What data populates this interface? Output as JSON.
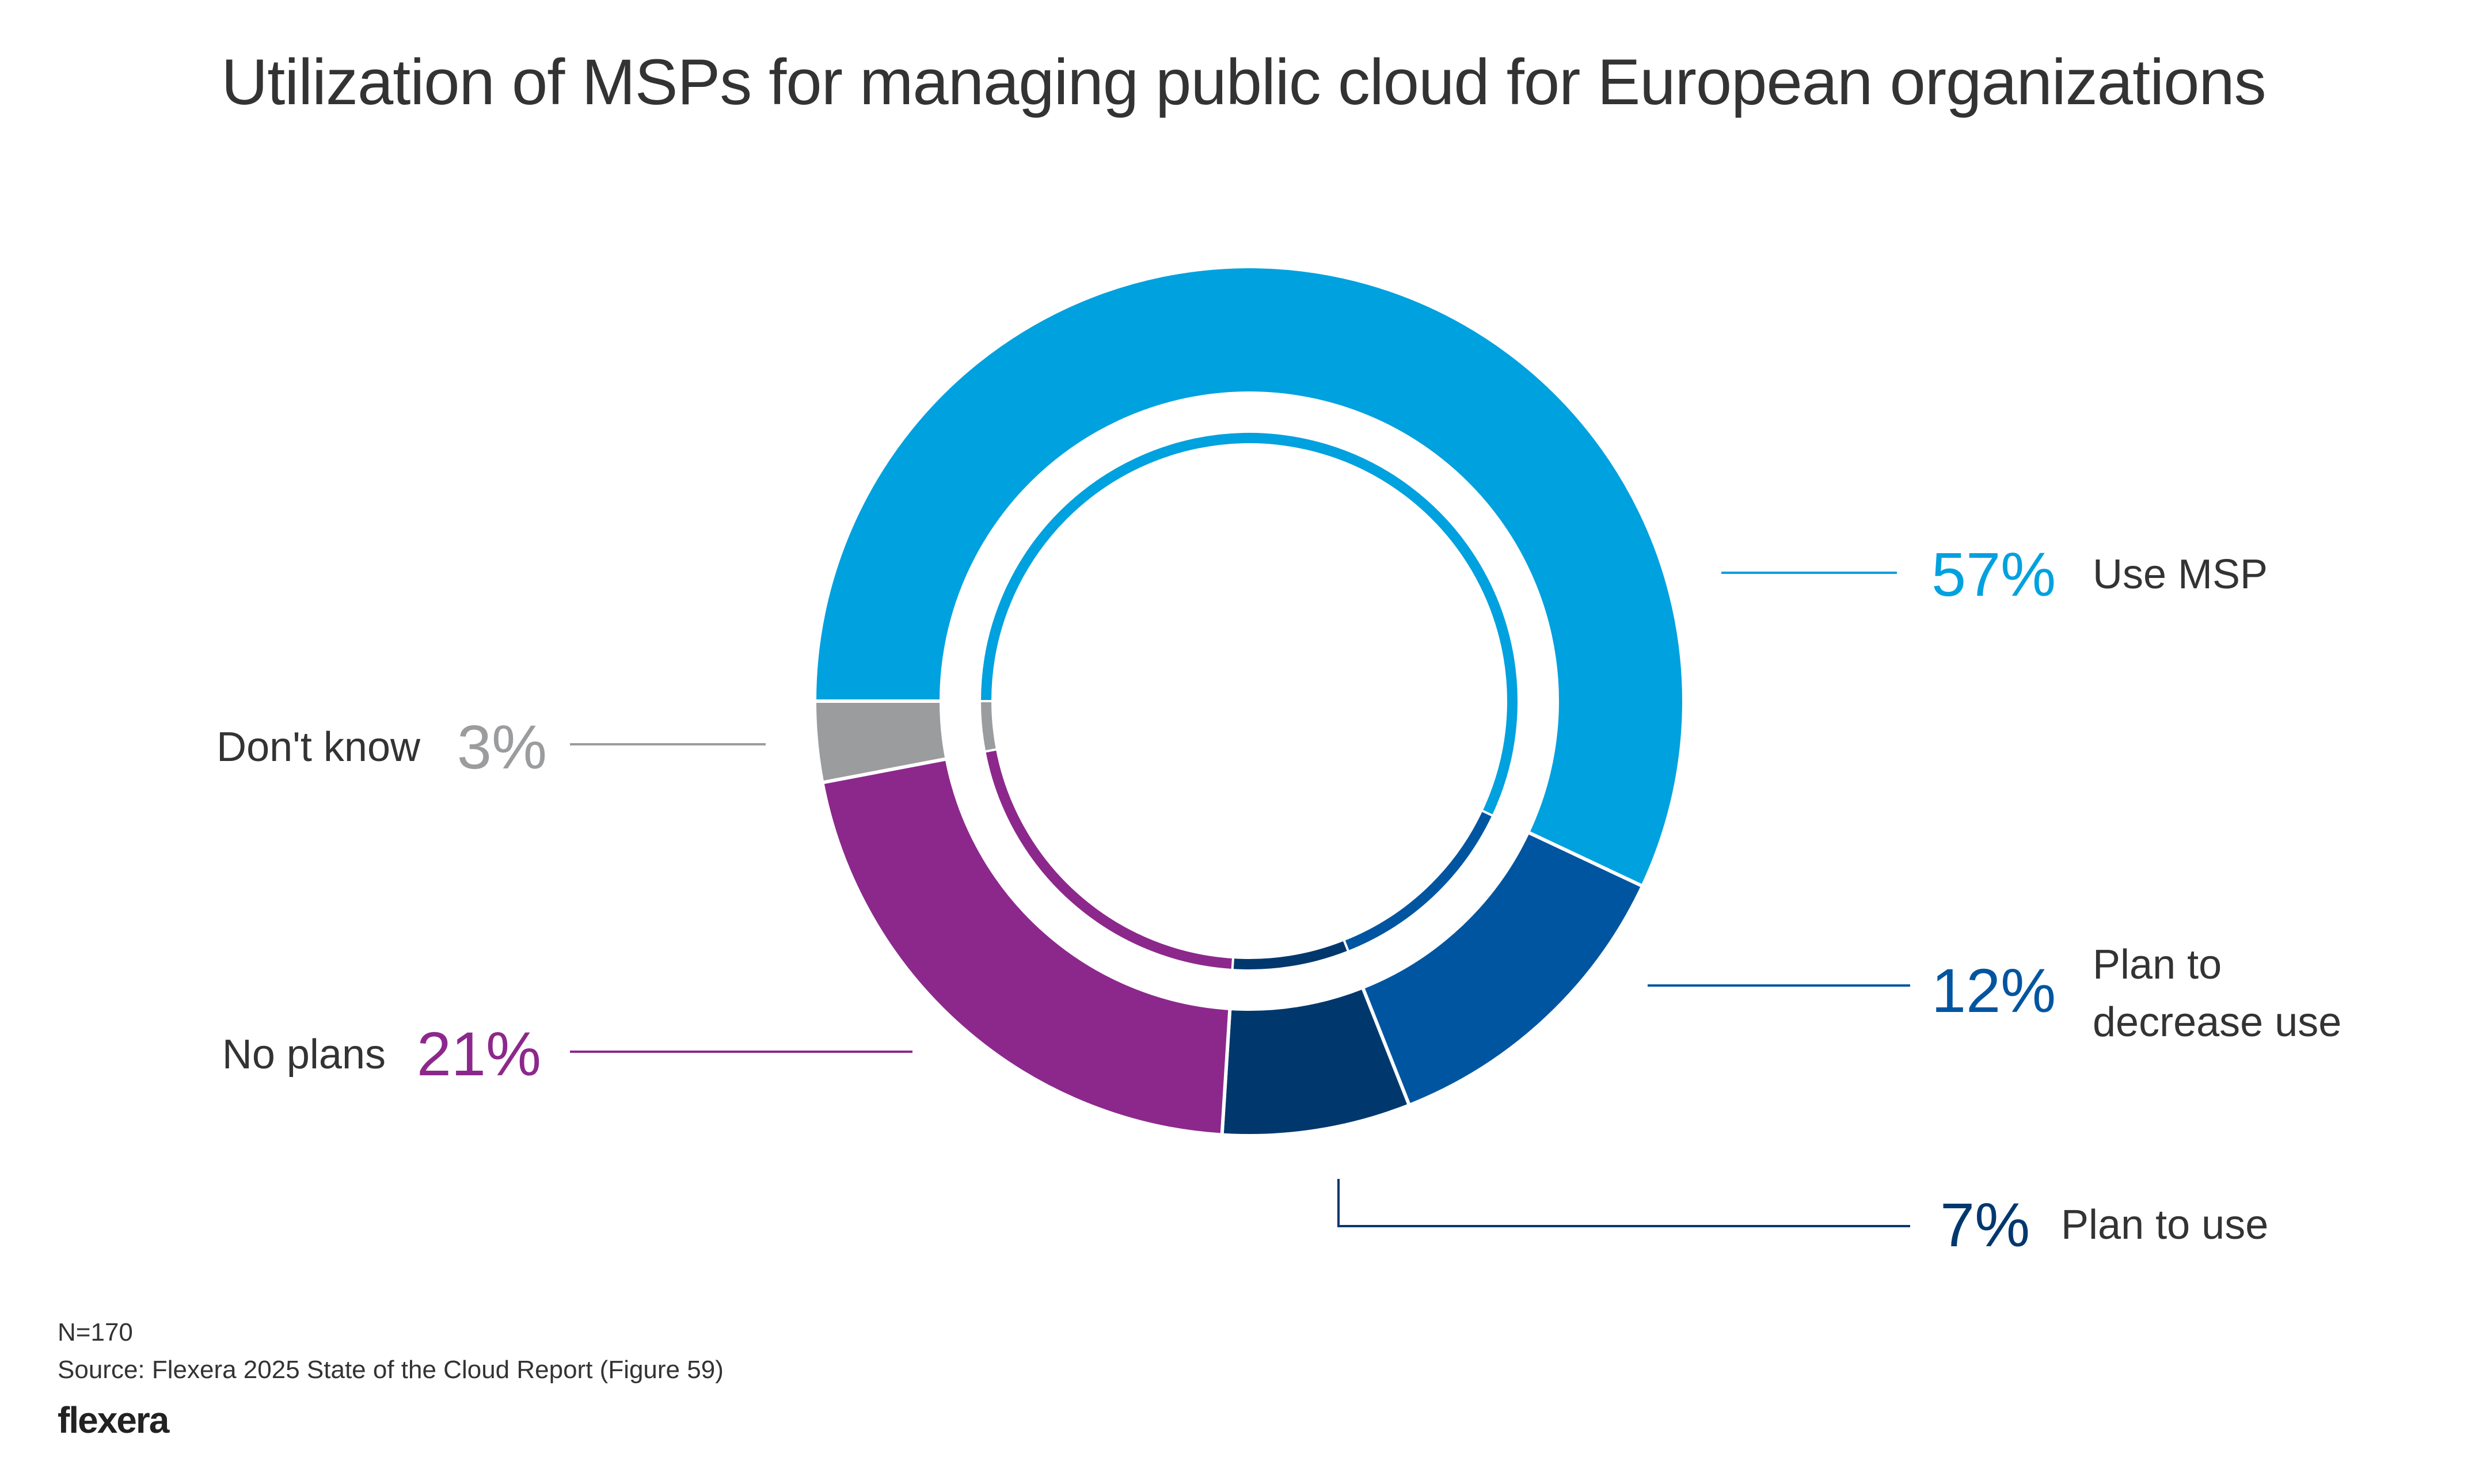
{
  "chart_data": {
    "type": "pie",
    "variant": "donut",
    "title": "Utilization of MSPs for managing public cloud for European organizations",
    "slices": [
      {
        "label": "Use MSP",
        "value": 57,
        "display": "57%",
        "color": "#00A1DF"
      },
      {
        "label": "Plan to decrease use",
        "label_lines": [
          "Plan to",
          "decrease use"
        ],
        "value": 12,
        "display": "12%",
        "color": "#0055A0"
      },
      {
        "label": "Plan to use",
        "value": 7,
        "display": "7%",
        "color": "#00386E"
      },
      {
        "label": "No plans",
        "value": 21,
        "display": "21%",
        "color": "#8C288C"
      },
      {
        "label": "Don't know",
        "value": 3,
        "display": "3%",
        "color": "#9B9C9E"
      }
    ],
    "start_position": "9 o'clock",
    "direction": "clockwise",
    "legend": "none (direct labels)"
  },
  "footer": {
    "n": "N=170",
    "source": "Source: Flexera 2025 State of the Cloud Report (Figure 59)",
    "logo": "flexera"
  }
}
